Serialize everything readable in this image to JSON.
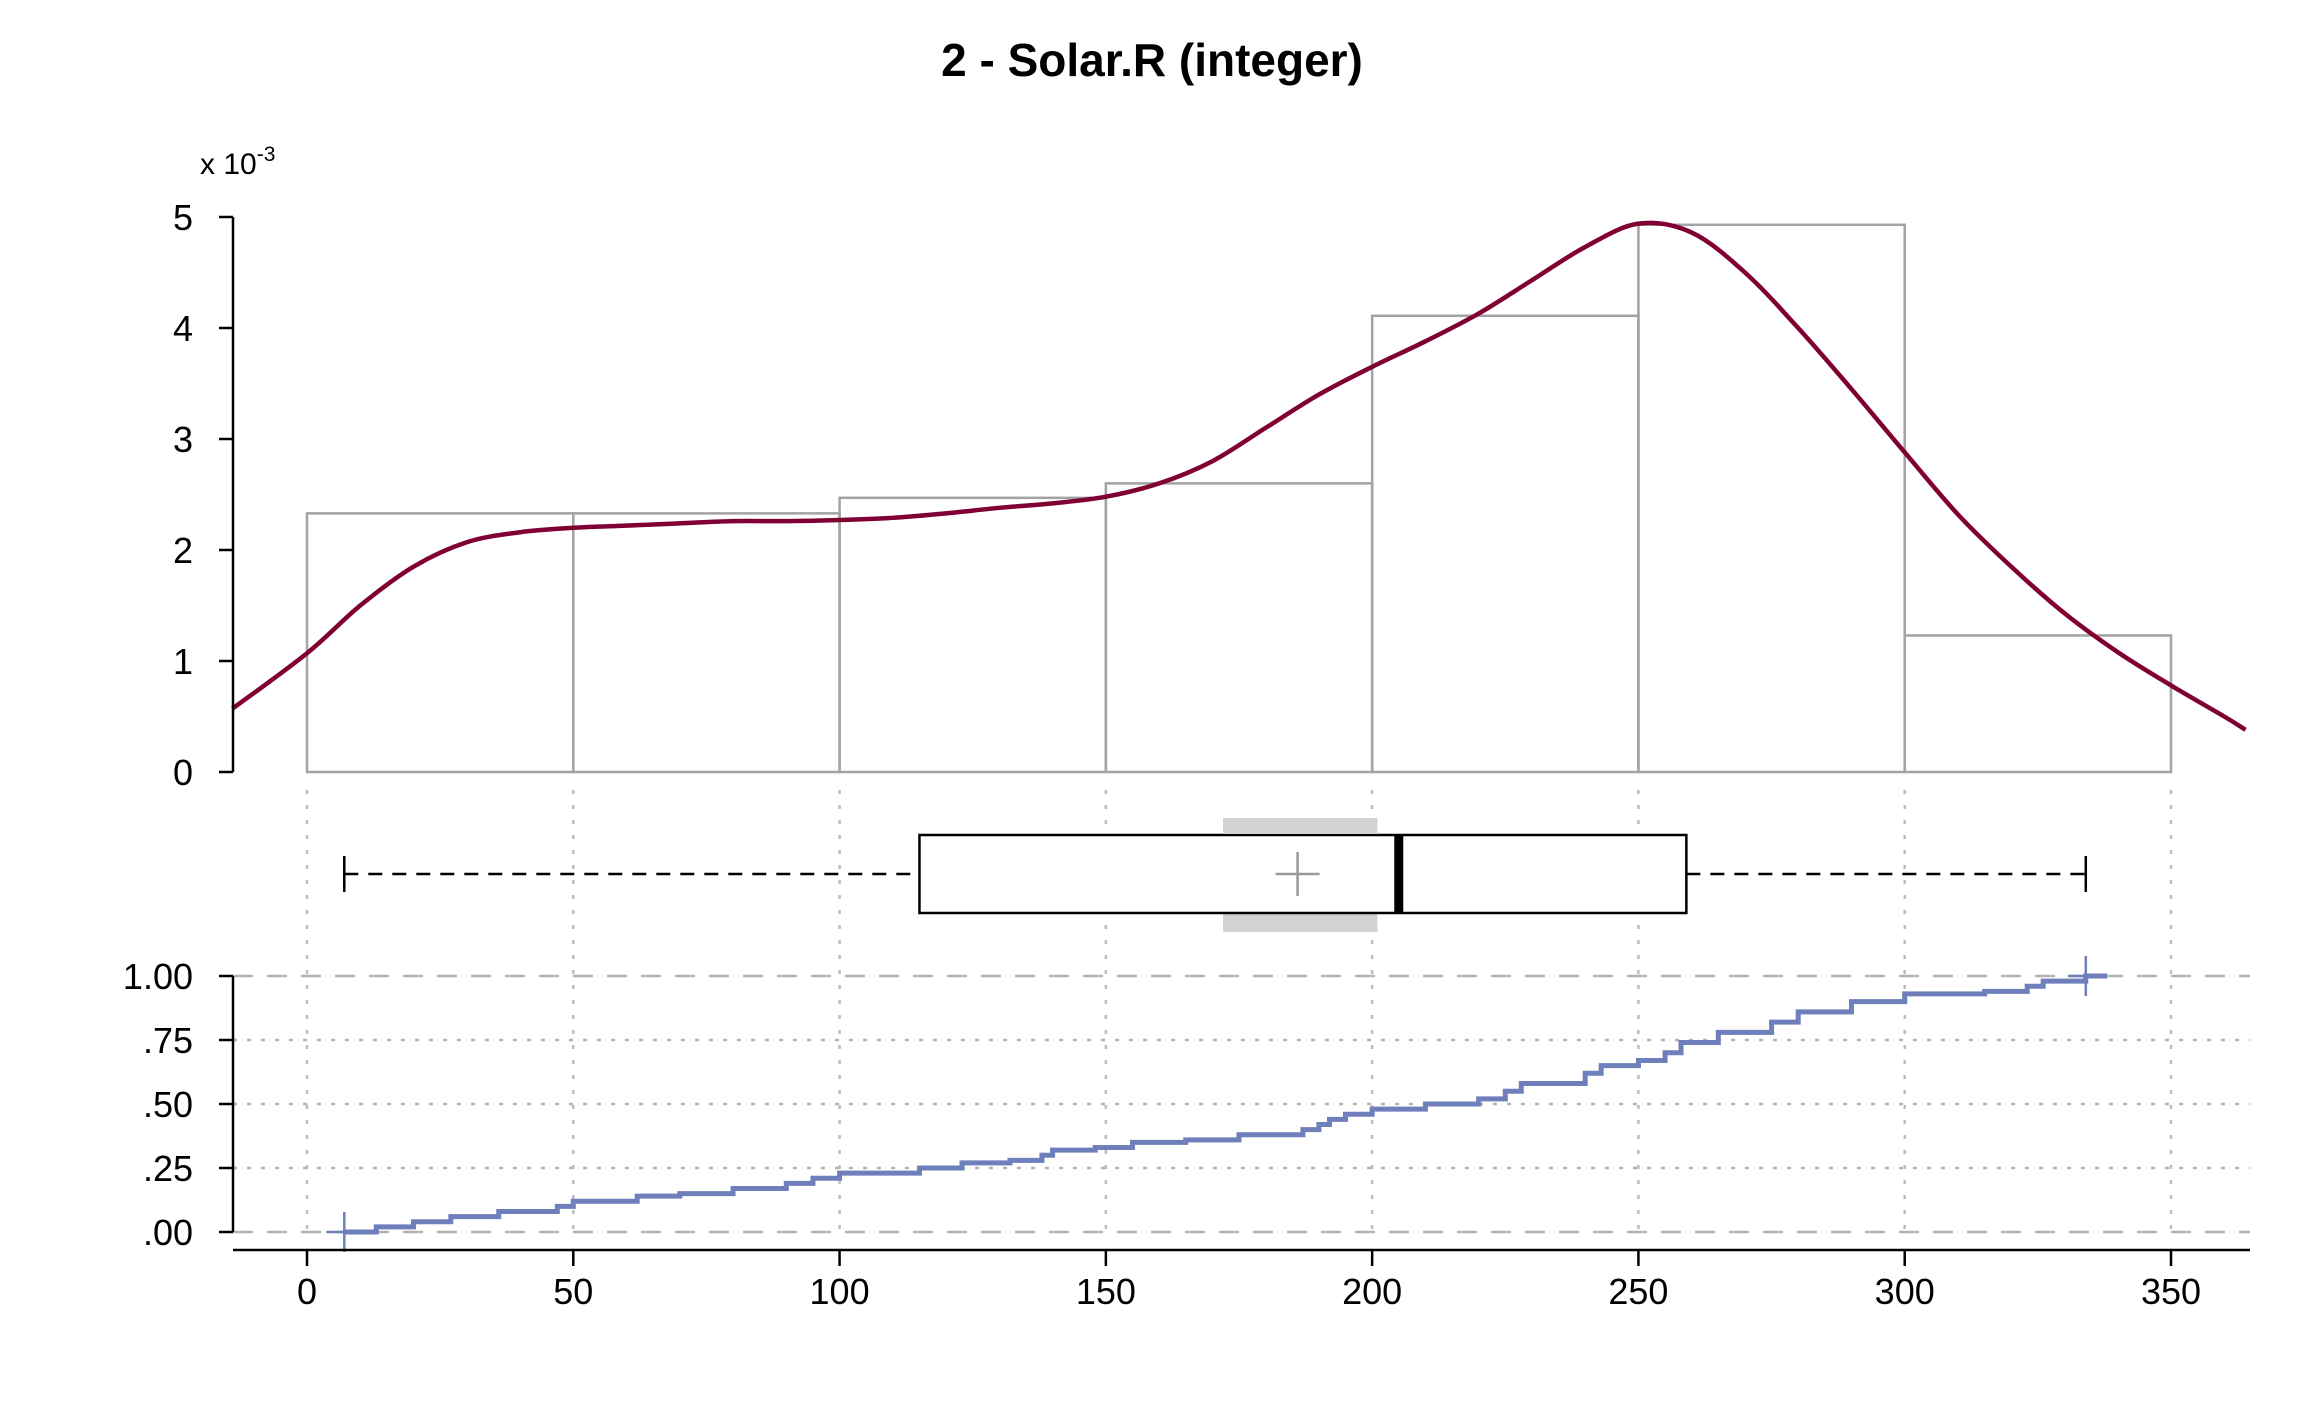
{
  "title": "2 - Solar.R (integer)",
  "colors": {
    "density": "#800033",
    "histogram": "#a3a3a3",
    "ecdf": "#6e7fbb",
    "ci_band": "#d3d3d3",
    "mean_mark": "#999999",
    "grid": "#b3b3b3"
  },
  "chart_data": [
    {
      "type": "bar",
      "role": "histogram-with-density",
      "bins": [
        {
          "from": 0,
          "to": 50,
          "density": 0.00233
        },
        {
          "from": 50,
          "to": 100,
          "density": 0.00233
        },
        {
          "from": 100,
          "to": 150,
          "density": 0.00247
        },
        {
          "from": 150,
          "to": 200,
          "density": 0.0026
        },
        {
          "from": 200,
          "to": 250,
          "density": 0.00411
        },
        {
          "from": 250,
          "to": 300,
          "density": 0.00493
        },
        {
          "from": 300,
          "to": 350,
          "density": 0.00123
        }
      ],
      "density_curve": {
        "x": [
          -14,
          0,
          10,
          20,
          30,
          40,
          50,
          60,
          70,
          80,
          90,
          100,
          110,
          120,
          130,
          140,
          150,
          160,
          170,
          180,
          190,
          200,
          210,
          220,
          230,
          240,
          250,
          260,
          270,
          280,
          290,
          300,
          310,
          320,
          330,
          340,
          350,
          360,
          364
        ],
        "y": [
          0.00057,
          0.00107,
          0.0015,
          0.00185,
          0.00207,
          0.00216,
          0.0022,
          0.00222,
          0.00224,
          0.00226,
          0.00226,
          0.00227,
          0.00229,
          0.00233,
          0.00238,
          0.00242,
          0.00248,
          0.0026,
          0.0028,
          0.0031,
          0.0034,
          0.00365,
          0.00388,
          0.00413,
          0.00443,
          0.00473,
          0.00494,
          0.00486,
          0.0045,
          0.004,
          0.00345,
          0.00288,
          0.00232,
          0.00185,
          0.00143,
          0.00108,
          0.00078,
          0.0005,
          0.00038
        ]
      },
      "y_multiplier": "x 10",
      "y_multiplier_exponent": "-3",
      "yticks": [
        "0",
        "1",
        "2",
        "3",
        "4",
        "5"
      ],
      "ylim": [
        0,
        0.005
      ]
    },
    {
      "type": "boxplot",
      "whisker_low": 7,
      "q1": 115,
      "median": 205,
      "q3": 259,
      "whisker_high": 334,
      "mean": 186,
      "mean_ci": [
        172,
        201
      ]
    },
    {
      "type": "line",
      "role": "ecdf",
      "step_points": [
        [
          7,
          0.0
        ],
        [
          13,
          0.02
        ],
        [
          20,
          0.04
        ],
        [
          27,
          0.06
        ],
        [
          36,
          0.08
        ],
        [
          47,
          0.1
        ],
        [
          50,
          0.12
        ],
        [
          62,
          0.14
        ],
        [
          70,
          0.15
        ],
        [
          80,
          0.17
        ],
        [
          90,
          0.19
        ],
        [
          95,
          0.21
        ],
        [
          100,
          0.23
        ],
        [
          115,
          0.25
        ],
        [
          123,
          0.27
        ],
        [
          132,
          0.28
        ],
        [
          138,
          0.3
        ],
        [
          140,
          0.32
        ],
        [
          148,
          0.33
        ],
        [
          155,
          0.35
        ],
        [
          165,
          0.36
        ],
        [
          175,
          0.38
        ],
        [
          187,
          0.4
        ],
        [
          190,
          0.42
        ],
        [
          192,
          0.44
        ],
        [
          195,
          0.46
        ],
        [
          200,
          0.48
        ],
        [
          210,
          0.5
        ],
        [
          220,
          0.52
        ],
        [
          225,
          0.55
        ],
        [
          228,
          0.58
        ],
        [
          240,
          0.62
        ],
        [
          243,
          0.65
        ],
        [
          250,
          0.67
        ],
        [
          255,
          0.7
        ],
        [
          258,
          0.74
        ],
        [
          265,
          0.78
        ],
        [
          275,
          0.82
        ],
        [
          280,
          0.86
        ],
        [
          290,
          0.9
        ],
        [
          300,
          0.93
        ],
        [
          315,
          0.94
        ],
        [
          323,
          0.96
        ],
        [
          326,
          0.98
        ],
        [
          334,
          1.0
        ]
      ],
      "x_max_drawn": 338,
      "yticks": [
        "1.00",
        ".75",
        ".50",
        ".25",
        ".00"
      ],
      "ylim": [
        0,
        1
      ]
    }
  ],
  "x_axis": {
    "ticks": [
      "0",
      "50",
      "100",
      "150",
      "200",
      "250",
      "300",
      "350"
    ]
  }
}
